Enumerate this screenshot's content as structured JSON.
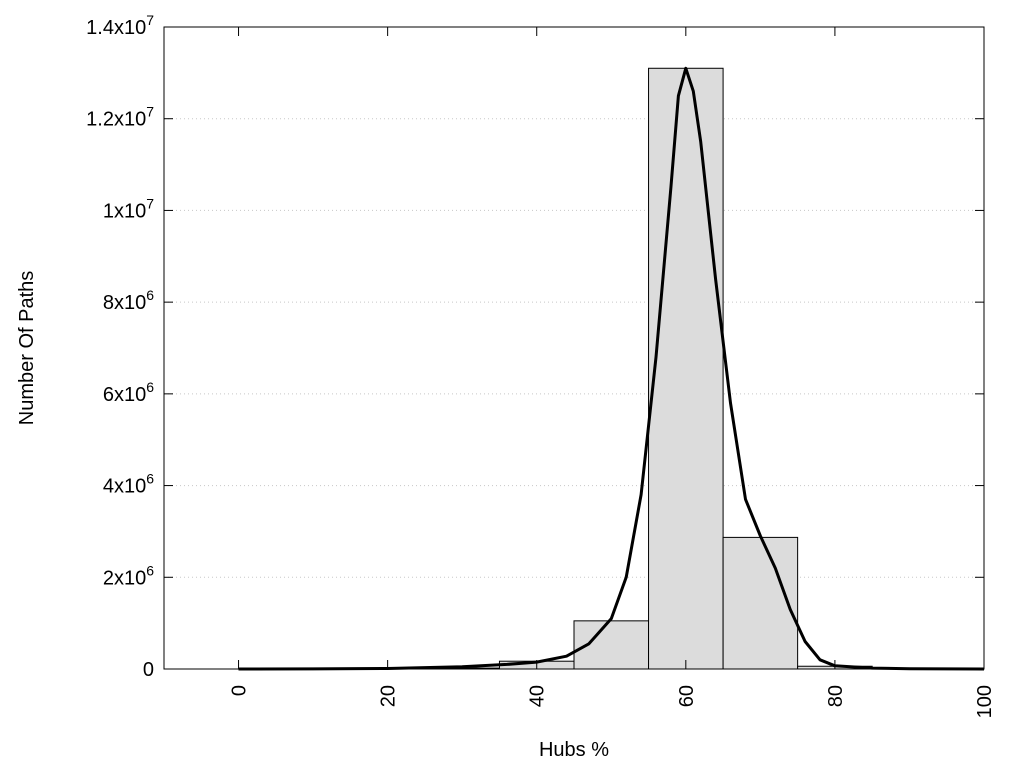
{
  "chart_data": {
    "type": "bar",
    "xlabel": "Hubs %",
    "ylabel": "Number Of Paths",
    "xlim": [
      -10,
      100
    ],
    "ylim": [
      0,
      14000000
    ],
    "xticks": [
      0,
      20,
      40,
      60,
      80,
      100
    ],
    "xtick_labels": [
      "0",
      "20",
      "40",
      "60",
      "80",
      "100"
    ],
    "yticks": [
      {
        "value": 0,
        "base": "0",
        "exp": ""
      },
      {
        "value": 2000000,
        "base": "2x10",
        "exp": "6"
      },
      {
        "value": 4000000,
        "base": "4x10",
        "exp": "6"
      },
      {
        "value": 6000000,
        "base": "6x10",
        "exp": "6"
      },
      {
        "value": 8000000,
        "base": "8x10",
        "exp": "6"
      },
      {
        "value": 10000000,
        "base": "1x10",
        "exp": "7"
      },
      {
        "value": 12000000,
        "base": "1.2x10",
        "exp": "7"
      },
      {
        "value": 14000000,
        "base": "1.4x10",
        "exp": "7"
      }
    ],
    "bin_width": 10,
    "bars": [
      {
        "x": 0,
        "value": 0
      },
      {
        "x": 10,
        "value": 0
      },
      {
        "x": 20,
        "value": 0
      },
      {
        "x": 30,
        "value": 20000
      },
      {
        "x": 40,
        "value": 170000
      },
      {
        "x": 50,
        "value": 1050000
      },
      {
        "x": 60,
        "value": 13100000
      },
      {
        "x": 70,
        "value": 2870000
      },
      {
        "x": 80,
        "value": 60000
      },
      {
        "x": 90,
        "value": 10000
      }
    ],
    "curve": [
      [
        0,
        0
      ],
      [
        10,
        2000
      ],
      [
        20,
        10000
      ],
      [
        30,
        50000
      ],
      [
        36,
        100000
      ],
      [
        40,
        150000
      ],
      [
        44,
        280000
      ],
      [
        47,
        550000
      ],
      [
        50,
        1100000
      ],
      [
        52,
        2000000
      ],
      [
        54,
        3800000
      ],
      [
        56,
        6800000
      ],
      [
        58,
        10500000
      ],
      [
        59,
        12500000
      ],
      [
        60,
        13100000
      ],
      [
        61,
        12600000
      ],
      [
        62,
        11500000
      ],
      [
        64,
        8500000
      ],
      [
        66,
        5800000
      ],
      [
        68,
        3700000
      ],
      [
        70,
        2900000
      ],
      [
        72,
        2200000
      ],
      [
        74,
        1300000
      ],
      [
        76,
        600000
      ],
      [
        78,
        200000
      ],
      [
        80,
        70000
      ],
      [
        85,
        20000
      ],
      [
        90,
        5000
      ],
      [
        100,
        0
      ]
    ],
    "grid": true,
    "legend": "none",
    "colors": {
      "bar_fill": "#dcdcdc",
      "bar_stroke": "#000000",
      "curve": "#000000",
      "grid": "#c8c8c8"
    }
  }
}
